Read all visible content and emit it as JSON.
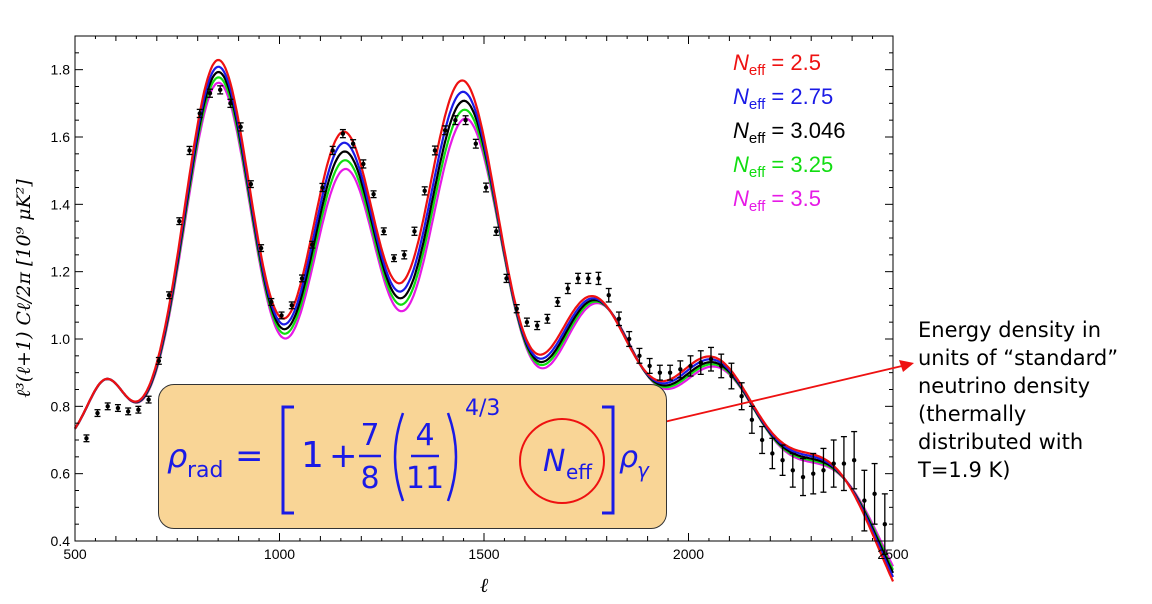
{
  "chart_data": {
    "type": "line",
    "xlabel": "ℓ",
    "ylabel": "ℓ³(ℓ+1) Cℓ/2π  [10⁹ μK²]",
    "xlim": [
      500,
      2500
    ],
    "ylim": [
      0.4,
      1.9
    ],
    "xticks": [
      "500",
      "1000",
      "1500",
      "2000",
      "2500"
    ],
    "yticks": [
      "0.4",
      "0.6",
      "0.8",
      "1.0",
      "1.2",
      "1.4",
      "1.6",
      "1.8"
    ],
    "grid": false,
    "legend_position": "top-right",
    "peaks": [
      {
        "ell": 575,
        "amp": 0.17,
        "width": 45
      },
      {
        "ell": 850,
        "amp": 1.08,
        "width": 82
      },
      {
        "ell": 1158,
        "amp": 0.92,
        "width": 84
      },
      {
        "ell": 1450,
        "amp": 1.21,
        "width": 95
      },
      {
        "ell": 1765,
        "amp": 0.76,
        "width": 108
      },
      {
        "ell": 2060,
        "amp": 0.7,
        "width": 120
      },
      {
        "ell": 2350,
        "amp": 0.48,
        "width": 120
      }
    ],
    "baseline": {
      "a": 0.72,
      "ell_peak": 730,
      "sigma": 1150
    },
    "series": [
      {
        "name": "N_eff = 2.5",
        "symbol": "N",
        "sub": "eff",
        "value": "2.5",
        "color": "#ee1111",
        "scale": 1.034,
        "shift": 0,
        "tail": 1.07
      },
      {
        "name": "N_eff = 2.75",
        "symbol": "N",
        "sub": "eff",
        "value": "2.75",
        "color": "#1a1ae6",
        "scale": 1.015,
        "shift": 4,
        "tail": 1.035
      },
      {
        "name": "N_eff = 3.046",
        "symbol": "N",
        "sub": "eff",
        "value": "3.046",
        "color": "#000000",
        "scale": 1.0,
        "shift": 8,
        "tail": 1.0
      },
      {
        "name": "N_eff = 3.25",
        "symbol": "N",
        "sub": "eff",
        "value": "3.25",
        "color": "#11dd11",
        "scale": 0.985,
        "shift": 11,
        "tail": 0.975
      },
      {
        "name": "N_eff = 3.5",
        "symbol": "N",
        "sub": "eff",
        "value": "3.5",
        "color": "#e61ae6",
        "scale": 0.97,
        "shift": 15,
        "tail": 0.95
      }
    ],
    "data_points": [
      {
        "x": 528,
        "y": 0.705,
        "err": 0.01
      },
      {
        "x": 555,
        "y": 0.78,
        "err": 0.01
      },
      {
        "x": 580,
        "y": 0.8,
        "err": 0.01
      },
      {
        "x": 605,
        "y": 0.795,
        "err": 0.01
      },
      {
        "x": 630,
        "y": 0.785,
        "err": 0.01
      },
      {
        "x": 655,
        "y": 0.79,
        "err": 0.01
      },
      {
        "x": 680,
        "y": 0.82,
        "err": 0.01
      },
      {
        "x": 705,
        "y": 0.935,
        "err": 0.01
      },
      {
        "x": 730,
        "y": 1.13,
        "err": 0.01
      },
      {
        "x": 755,
        "y": 1.35,
        "err": 0.01
      },
      {
        "x": 780,
        "y": 1.56,
        "err": 0.012
      },
      {
        "x": 805,
        "y": 1.67,
        "err": 0.012
      },
      {
        "x": 830,
        "y": 1.73,
        "err": 0.012
      },
      {
        "x": 855,
        "y": 1.74,
        "err": 0.012
      },
      {
        "x": 880,
        "y": 1.7,
        "err": 0.012
      },
      {
        "x": 905,
        "y": 1.63,
        "err": 0.012
      },
      {
        "x": 930,
        "y": 1.46,
        "err": 0.01
      },
      {
        "x": 955,
        "y": 1.27,
        "err": 0.01
      },
      {
        "x": 980,
        "y": 1.11,
        "err": 0.01
      },
      {
        "x": 1005,
        "y": 1.07,
        "err": 0.01
      },
      {
        "x": 1030,
        "y": 1.1,
        "err": 0.01
      },
      {
        "x": 1055,
        "y": 1.18,
        "err": 0.01
      },
      {
        "x": 1080,
        "y": 1.28,
        "err": 0.01
      },
      {
        "x": 1105,
        "y": 1.45,
        "err": 0.012
      },
      {
        "x": 1130,
        "y": 1.56,
        "err": 0.012
      },
      {
        "x": 1155,
        "y": 1.61,
        "err": 0.012
      },
      {
        "x": 1180,
        "y": 1.58,
        "err": 0.012
      },
      {
        "x": 1205,
        "y": 1.52,
        "err": 0.012
      },
      {
        "x": 1230,
        "y": 1.43,
        "err": 0.01
      },
      {
        "x": 1255,
        "y": 1.32,
        "err": 0.01
      },
      {
        "x": 1280,
        "y": 1.24,
        "err": 0.01
      },
      {
        "x": 1305,
        "y": 1.25,
        "err": 0.012
      },
      {
        "x": 1330,
        "y": 1.32,
        "err": 0.012
      },
      {
        "x": 1355,
        "y": 1.44,
        "err": 0.012
      },
      {
        "x": 1380,
        "y": 1.56,
        "err": 0.013
      },
      {
        "x": 1405,
        "y": 1.62,
        "err": 0.013
      },
      {
        "x": 1430,
        "y": 1.65,
        "err": 0.013
      },
      {
        "x": 1455,
        "y": 1.65,
        "err": 0.013
      },
      {
        "x": 1480,
        "y": 1.58,
        "err": 0.013
      },
      {
        "x": 1505,
        "y": 1.45,
        "err": 0.013
      },
      {
        "x": 1530,
        "y": 1.32,
        "err": 0.012
      },
      {
        "x": 1555,
        "y": 1.18,
        "err": 0.012
      },
      {
        "x": 1580,
        "y": 1.09,
        "err": 0.012
      },
      {
        "x": 1605,
        "y": 1.05,
        "err": 0.012
      },
      {
        "x": 1630,
        "y": 1.04,
        "err": 0.012
      },
      {
        "x": 1655,
        "y": 1.06,
        "err": 0.013
      },
      {
        "x": 1680,
        "y": 1.11,
        "err": 0.013
      },
      {
        "x": 1705,
        "y": 1.15,
        "err": 0.015
      },
      {
        "x": 1730,
        "y": 1.18,
        "err": 0.015
      },
      {
        "x": 1755,
        "y": 1.18,
        "err": 0.015
      },
      {
        "x": 1780,
        "y": 1.18,
        "err": 0.018
      },
      {
        "x": 1805,
        "y": 1.13,
        "err": 0.02
      },
      {
        "x": 1830,
        "y": 1.06,
        "err": 0.02
      },
      {
        "x": 1855,
        "y": 1.0,
        "err": 0.022
      },
      {
        "x": 1880,
        "y": 0.95,
        "err": 0.022
      },
      {
        "x": 1905,
        "y": 0.92,
        "err": 0.022
      },
      {
        "x": 1930,
        "y": 0.9,
        "err": 0.022
      },
      {
        "x": 1955,
        "y": 0.9,
        "err": 0.022
      },
      {
        "x": 1980,
        "y": 0.91,
        "err": 0.025
      },
      {
        "x": 2005,
        "y": 0.92,
        "err": 0.03
      },
      {
        "x": 2030,
        "y": 0.93,
        "err": 0.035
      },
      {
        "x": 2055,
        "y": 0.94,
        "err": 0.035
      },
      {
        "x": 2080,
        "y": 0.92,
        "err": 0.035
      },
      {
        "x": 2105,
        "y": 0.89,
        "err": 0.038
      },
      {
        "x": 2130,
        "y": 0.83,
        "err": 0.04
      },
      {
        "x": 2155,
        "y": 0.76,
        "err": 0.04
      },
      {
        "x": 2180,
        "y": 0.7,
        "err": 0.04
      },
      {
        "x": 2205,
        "y": 0.66,
        "err": 0.045
      },
      {
        "x": 2230,
        "y": 0.64,
        "err": 0.045
      },
      {
        "x": 2255,
        "y": 0.61,
        "err": 0.05
      },
      {
        "x": 2280,
        "y": 0.59,
        "err": 0.055
      },
      {
        "x": 2305,
        "y": 0.6,
        "err": 0.06
      },
      {
        "x": 2330,
        "y": 0.61,
        "err": 0.065
      },
      {
        "x": 2355,
        "y": 0.63,
        "err": 0.07
      },
      {
        "x": 2380,
        "y": 0.63,
        "err": 0.08
      },
      {
        "x": 2405,
        "y": 0.64,
        "err": 0.085
      },
      {
        "x": 2430,
        "y": 0.52,
        "err": 0.09
      },
      {
        "x": 2455,
        "y": 0.54,
        "err": 0.09
      },
      {
        "x": 2480,
        "y": 0.45,
        "err": 0.09
      }
    ]
  },
  "formula": {
    "lhs_symbol": "ρ",
    "lhs_sub": "rad",
    "equals": "=",
    "one": "1",
    "plus": "+",
    "frac1_num": "7",
    "frac1_den": "8",
    "frac2_num": "4",
    "frac2_den": "11",
    "exponent": "4/3",
    "n_symbol": "N",
    "n_sub": "eff",
    "rhs_symbol": "ρ",
    "rhs_sub": "γ",
    "box_color": "#f9d596",
    "text_color": "#1a1ae6",
    "circle_color": "#ee1111"
  },
  "annotation": {
    "lines": [
      "Energy density in",
      "units of “standard”",
      "neutrino density",
      "(thermally",
      "distributed with",
      "T=1.9 K)"
    ],
    "arrow_color": "#ee1111"
  }
}
